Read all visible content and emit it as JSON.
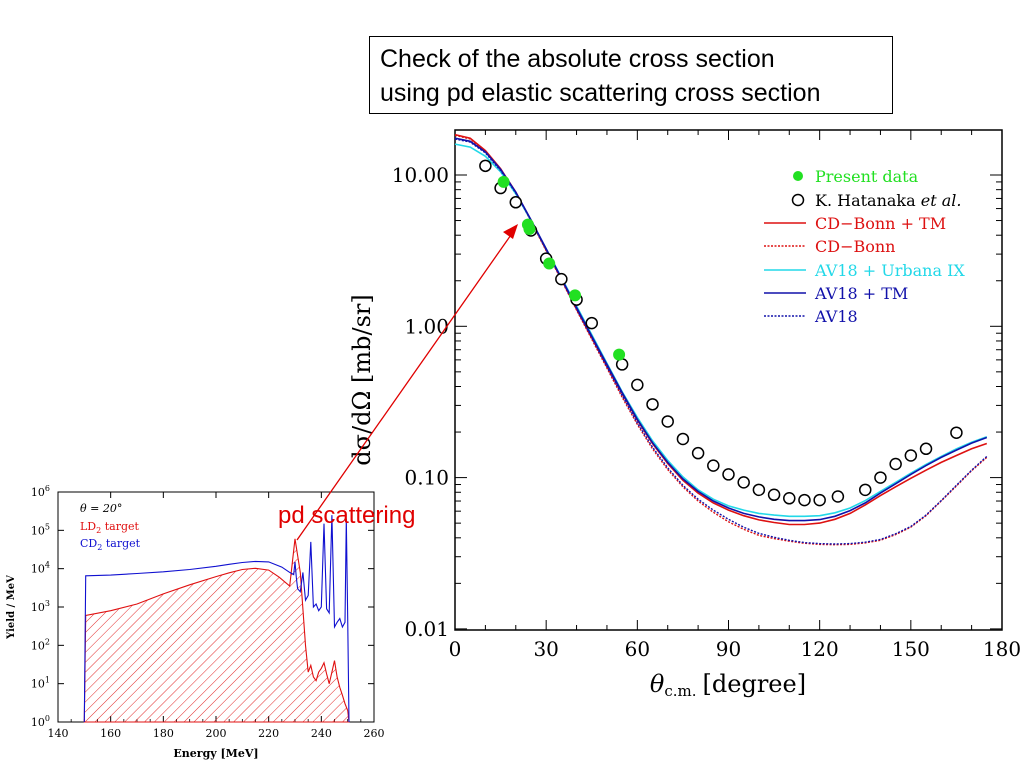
{
  "title": {
    "line1": "Check of the absolute cross section",
    "line2": "using pd elastic scattering cross section"
  },
  "annotation": {
    "text": "pd scattering",
    "color": "#e00000"
  },
  "chart_data": [
    {
      "type": "scatter",
      "ylog": true,
      "xlim": [
        0,
        180
      ],
      "ylim": [
        0.01,
        20
      ],
      "xticks": [
        "0",
        "30",
        "60",
        "90",
        "120",
        "150",
        "180"
      ],
      "yticks": [
        "10.00",
        "1.00",
        "0.10",
        "0.01"
      ],
      "xlabel_main": "θ",
      "xlabel_sub": "c.m.",
      "xlabel_unit": "[degree]",
      "ylabel": "dσ/dΩ [mb/sr]",
      "legend": [
        {
          "label": "Present data",
          "marker": "filled",
          "color": "#22e022"
        },
        {
          "label_main": "K. Hatanaka ",
          "label_italic": "et al.",
          "marker": "open",
          "color": "#000000"
        },
        {
          "label": "CD−Bonn + TM",
          "style": "solid",
          "color": "#dd1111"
        },
        {
          "label": "CD−Bonn",
          "style": "dotted",
          "color": "#dd1111"
        },
        {
          "label": "AV18 + Urbana IX",
          "style": "solid",
          "color": "#22d8e8"
        },
        {
          "label": "AV18 + TM",
          "style": "solid",
          "color": "#1111aa"
        },
        {
          "label": "AV18",
          "style": "dotted",
          "color": "#1111aa"
        }
      ],
      "series": [
        {
          "name": "Present data",
          "x": [
            16,
            24,
            24.5,
            31,
            39.5,
            54
          ],
          "y": [
            9.0,
            4.7,
            4.4,
            2.6,
            1.6,
            0.65
          ]
        },
        {
          "name": "K. Hatanaka et al.",
          "x": [
            10,
            15,
            20,
            25,
            30,
            35,
            40,
            45,
            55,
            60,
            65,
            70,
            75,
            80,
            85,
            90,
            95,
            100,
            105,
            110,
            115,
            120,
            126,
            135,
            140,
            145,
            150,
            155,
            165
          ],
          "y": [
            11.5,
            8.2,
            6.6,
            4.3,
            2.8,
            2.05,
            1.5,
            1.05,
            0.56,
            0.41,
            0.305,
            0.235,
            0.18,
            0.145,
            0.12,
            0.105,
            0.093,
            0.083,
            0.077,
            0.073,
            0.071,
            0.071,
            0.075,
            0.083,
            0.1,
            0.123,
            0.14,
            0.155,
            0.198
          ]
        },
        {
          "name": "CD−Bonn + TM",
          "x": [
            0,
            5,
            10,
            15,
            20,
            25,
            30,
            35,
            40,
            45,
            50,
            55,
            60,
            65,
            70,
            75,
            80,
            85,
            90,
            95,
            100,
            105,
            110,
            115,
            120,
            125,
            130,
            135,
            140,
            145,
            150,
            155,
            160,
            165,
            170,
            175
          ],
          "y": [
            18.5,
            17.5,
            14.5,
            11.0,
            7.7,
            5.0,
            3.2,
            2.05,
            1.3,
            0.84,
            0.55,
            0.36,
            0.24,
            0.168,
            0.124,
            0.096,
            0.079,
            0.068,
            0.061,
            0.056,
            0.0525,
            0.0505,
            0.049,
            0.049,
            0.05,
            0.053,
            0.058,
            0.066,
            0.076,
            0.087,
            0.099,
            0.112,
            0.126,
            0.14,
            0.155,
            0.168
          ]
        },
        {
          "name": "CD−Bonn",
          "x": [
            0,
            5,
            10,
            15,
            20,
            25,
            30,
            35,
            40,
            45,
            50,
            55,
            60,
            65,
            70,
            75,
            80,
            85,
            90,
            95,
            100,
            105,
            110,
            115,
            120,
            125,
            130,
            135,
            140,
            145,
            150,
            155,
            160,
            165,
            170,
            175
          ],
          "y": [
            18.3,
            17.3,
            14.3,
            10.8,
            7.6,
            4.95,
            3.15,
            2.02,
            1.28,
            0.82,
            0.53,
            0.34,
            0.225,
            0.155,
            0.113,
            0.087,
            0.07,
            0.059,
            0.051,
            0.0455,
            0.0415,
            0.0395,
            0.038,
            0.0368,
            0.0362,
            0.036,
            0.0362,
            0.037,
            0.0385,
            0.042,
            0.047,
            0.056,
            0.07,
            0.088,
            0.111,
            0.136
          ]
        },
        {
          "name": "AV18 + Urbana IX",
          "x": [
            0,
            5,
            10,
            15,
            20,
            25,
            30,
            35,
            40,
            45,
            50,
            55,
            60,
            65,
            70,
            75,
            80,
            85,
            90,
            95,
            100,
            105,
            110,
            115,
            120,
            125,
            130,
            135,
            140,
            145,
            150,
            155,
            160,
            165,
            170,
            175
          ],
          "y": [
            16.0,
            15.3,
            13.3,
            10.5,
            7.5,
            5.0,
            3.25,
            2.1,
            1.36,
            0.88,
            0.57,
            0.37,
            0.25,
            0.175,
            0.13,
            0.101,
            0.083,
            0.072,
            0.065,
            0.061,
            0.058,
            0.0565,
            0.0555,
            0.0555,
            0.056,
            0.0585,
            0.063,
            0.0705,
            0.081,
            0.093,
            0.107,
            0.122,
            0.138,
            0.155,
            0.171,
            0.186
          ]
        },
        {
          "name": "AV18 + TM",
          "x": [
            0,
            5,
            10,
            15,
            20,
            25,
            30,
            35,
            40,
            45,
            50,
            55,
            60,
            65,
            70,
            75,
            80,
            85,
            90,
            95,
            100,
            105,
            110,
            115,
            120,
            125,
            130,
            135,
            140,
            145,
            150,
            155,
            160,
            165,
            170,
            175
          ],
          "y": [
            17.5,
            16.7,
            14.2,
            10.9,
            7.7,
            5.05,
            3.25,
            2.08,
            1.33,
            0.86,
            0.56,
            0.365,
            0.243,
            0.17,
            0.126,
            0.098,
            0.081,
            0.07,
            0.063,
            0.058,
            0.055,
            0.053,
            0.052,
            0.052,
            0.0528,
            0.0555,
            0.0605,
            0.068,
            0.079,
            0.091,
            0.105,
            0.12,
            0.136,
            0.152,
            0.169,
            0.184
          ]
        },
        {
          "name": "AV18",
          "x": [
            0,
            5,
            10,
            15,
            20,
            25,
            30,
            35,
            40,
            45,
            50,
            55,
            60,
            65,
            70,
            75,
            80,
            85,
            90,
            95,
            100,
            105,
            110,
            115,
            120,
            125,
            130,
            135,
            140,
            145,
            150,
            155,
            160,
            165,
            170,
            175
          ],
          "y": [
            17.3,
            16.5,
            14.0,
            10.7,
            7.6,
            5.0,
            3.2,
            2.05,
            1.3,
            0.84,
            0.54,
            0.35,
            0.23,
            0.159,
            0.116,
            0.089,
            0.072,
            0.061,
            0.053,
            0.047,
            0.0428,
            0.0403,
            0.0385,
            0.0372,
            0.0366,
            0.0364,
            0.0366,
            0.0374,
            0.039,
            0.0425,
            0.0475,
            0.0565,
            0.0705,
            0.089,
            0.112,
            0.138
          ]
        }
      ]
    },
    {
      "type": "area",
      "ylog": true,
      "xlim": [
        140,
        260
      ],
      "ylim": [
        1,
        1000000
      ],
      "xticks": [
        "140",
        "160",
        "180",
        "200",
        "220",
        "240",
        "260"
      ],
      "ytick_exponents": [
        "0",
        "1",
        "2",
        "3",
        "4",
        "5",
        "6"
      ],
      "ytick_base": "10",
      "xlabel": "Energy [MeV]",
      "ylabel": "Yield / MeV",
      "legend": [
        {
          "label": "θ = 20°",
          "color": "#000000"
        },
        {
          "label_main": "LD",
          "label_sub": "2",
          "label_rest": " target",
          "color": "#e01010"
        },
        {
          "label_main": "CD",
          "label_sub": "2",
          "label_rest": " target",
          "color": "#1010d0"
        }
      ],
      "series": [
        {
          "name": "CD2 target",
          "x": [
            150,
            150.5,
            160,
            170,
            180,
            190,
            200,
            205,
            210,
            215,
            220,
            225,
            228,
            229.5,
            230,
            230.5,
            231,
            232,
            233,
            234,
            235,
            236,
            237,
            238,
            239,
            240,
            241,
            242,
            243,
            244,
            245,
            246,
            247,
            248,
            249,
            249.5,
            250,
            250.5
          ],
          "y": [
            1,
            6500,
            6800,
            7500,
            8300,
            9500,
            11500,
            13000,
            14500,
            15500,
            15000,
            11000,
            8000,
            7000,
            15000,
            6000,
            3000,
            2500,
            8000,
            1500,
            2000,
            50000,
            1000,
            1200,
            800,
            1000,
            150000,
            900,
            700,
            250000,
            300,
            400,
            500,
            300,
            400,
            200000,
            500,
            1
          ]
        },
        {
          "name": "LD2 target",
          "x": [
            150,
            150.5,
            160,
            170,
            180,
            190,
            200,
            205,
            210,
            215,
            220,
            224,
            228,
            230,
            232,
            234,
            235,
            236,
            237,
            238,
            239,
            240,
            241,
            242,
            243,
            244,
            245,
            246,
            247,
            248,
            249,
            250,
            250.5
          ],
          "y": [
            1,
            600,
            800,
            1200,
            2200,
            3800,
            6200,
            7800,
            9500,
            10200,
            9200,
            6000,
            3500,
            60000,
            8000,
            100,
            20,
            30,
            15,
            12,
            20,
            25,
            35,
            18,
            10,
            20,
            40,
            15,
            8,
            5,
            3,
            2,
            1
          ]
        }
      ]
    }
  ]
}
